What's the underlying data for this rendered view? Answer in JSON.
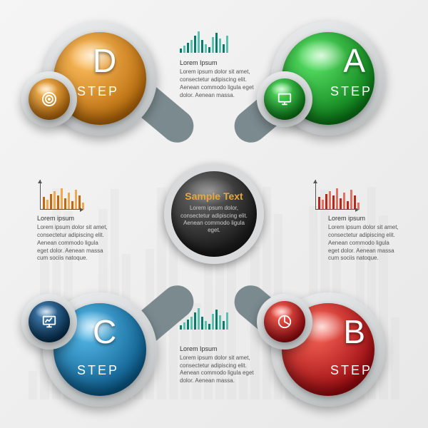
{
  "type": "infographic",
  "background": {
    "gradient": [
      "#f5f5f5",
      "#e8e8e8"
    ],
    "bar_color": "#cccccc"
  },
  "center": {
    "title": "Sample Text",
    "body": "Lorem ipsum dolor, consectetur adipiscing elit. Aenean commodo ligula eget.",
    "title_color": "#e8a838",
    "body_color": "#cccccc",
    "sphere_gradient": [
      "#6a6a6a",
      "#1a1a1a"
    ],
    "bezel_color": "#d8dadb"
  },
  "connector_color": "#7a8a8f",
  "step_label": "STEP",
  "nodes": {
    "A": {
      "letter": "A",
      "big_color": "#1fa82e",
      "big_gradient": [
        "#5de86a",
        "#0a7a17"
      ],
      "small_color": "#1fa82e",
      "small_gradient": [
        "#5de86a",
        "#0a7a17"
      ],
      "icon": "monitor"
    },
    "B": {
      "letter": "B",
      "big_color": "#d4141e",
      "big_gradient": [
        "#ff6a5a",
        "#9a0a10"
      ],
      "small_color": "#d4141e",
      "small_gradient": [
        "#ff6a5a",
        "#9a0a10"
      ],
      "icon": "pie"
    },
    "C": {
      "letter": "C",
      "big_color": "#1a7fb8",
      "big_gradient": [
        "#5ac0f0",
        "#0a5a8a"
      ],
      "small_color": "#0a4a7a",
      "small_gradient": [
        "#4a8ac0",
        "#072f50"
      ],
      "icon": "monitor-graph"
    },
    "D": {
      "letter": "D",
      "big_color": "#e88a1a",
      "big_gradient": [
        "#ffc060",
        "#b86a0a"
      ],
      "small_color": "#e88a1a",
      "small_gradient": [
        "#ffc060",
        "#b86a0a"
      ],
      "icon": "target"
    }
  },
  "top_text": {
    "heading": "Lorem Ipsum",
    "body": "Lorem ipsum dolor sit amet, consectetur adipiscing elit. Aenean commodo ligula eget dolor. Aenean massa."
  },
  "bottom_text": {
    "heading": "Lorem Ipsum",
    "body": "Lorem ipsum dolor sit amet, consectetur adipiscing elit. Aenean commodo ligula eget dolor. Aenean massa."
  },
  "left_block": {
    "heading": "Lorem ipsum",
    "body": "Lorem ipsum dolor sit amet, consectetur adipiscing elit. Aenean commodo ligula eget dolor. Aenean massa cum sociis natoque."
  },
  "right_block": {
    "heading": "Lorem ipsum",
    "body": "Lorem ipsum dolor sit amet, consectetur adipiscing elit. Aenean commodo ligula eget dolor. Aenean massa cum sociis natoque."
  },
  "top_chart": {
    "heights": [
      6,
      10,
      14,
      18,
      24,
      30,
      18,
      12,
      8,
      22,
      28,
      20,
      12,
      24
    ],
    "color_dark": "#0a7a6a",
    "color_light": "#5ac0b0"
  },
  "bottom_chart": {
    "heights": [
      6,
      10,
      14,
      18,
      24,
      30,
      18,
      12,
      8,
      22,
      28,
      20,
      12,
      24
    ],
    "color_dark": "#0a7a6a",
    "color_light": "#5ac0b0"
  },
  "left_chart": {
    "heights": [
      18,
      14,
      22,
      26,
      20,
      30,
      16,
      24,
      12,
      28,
      20,
      10
    ],
    "color_dark": "#c06a10",
    "color_light": "#f0a850",
    "axis_height": 42,
    "axis_width": 54
  },
  "right_chart": {
    "heights": [
      18,
      14,
      22,
      26,
      20,
      30,
      16,
      24,
      12,
      28,
      20,
      10
    ],
    "color_dark": "#b8281a",
    "color_light": "#e87060",
    "axis_height": 42,
    "axis_width": 54
  }
}
